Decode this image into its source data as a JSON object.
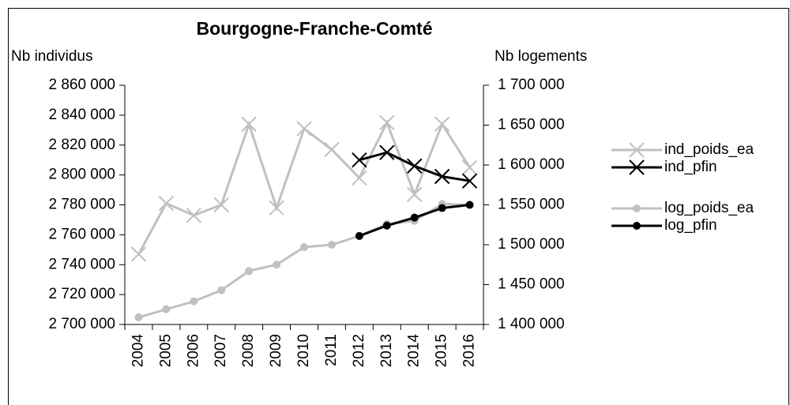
{
  "chart_data": {
    "type": "line",
    "title": "Bourgogne-Franche-Comté",
    "y_label": "Nb individus",
    "y2_label": "Nb logements",
    "categories": [
      "2004",
      "2005",
      "2006",
      "2007",
      "2008",
      "2009",
      "2010",
      "2011",
      "2012",
      "2013",
      "2014",
      "2015",
      "2016"
    ],
    "series": [
      {
        "name": "ind_poids_ea",
        "color": "#c0c0c0",
        "marker": "x",
        "axis": "y",
        "values": [
          2747000,
          2781000,
          2773000,
          2780000,
          2834000,
          2778000,
          2831000,
          2817000,
          2798000,
          2835000,
          2787000,
          2834000,
          2805000
        ]
      },
      {
        "name": "ind_pfin",
        "color": "#000000",
        "marker": "x",
        "axis": "y",
        "values": [
          null,
          null,
          null,
          null,
          null,
          null,
          null,
          null,
          2810000,
          2815000,
          2806000,
          2799000,
          2796000
        ]
      },
      {
        "name": "log_poids_ea",
        "color": "#c0c0c0",
        "marker": "circle",
        "axis": "y2",
        "values": [
          1409000,
          1419000,
          1429000,
          1443000,
          1467000,
          1475000,
          1497000,
          1500000,
          1511000,
          1526000,
          1530000,
          1551000,
          1550000
        ]
      },
      {
        "name": "log_pfin",
        "color": "#000000",
        "marker": "circle",
        "axis": "y2",
        "values": [
          null,
          null,
          null,
          null,
          null,
          null,
          null,
          null,
          1511000,
          1524000,
          1534000,
          1546000,
          1550000
        ]
      }
    ],
    "ylim": [
      2700000,
      2860000
    ],
    "yticks": [
      {
        "value": 2700000,
        "label": "2 700 000"
      },
      {
        "value": 2720000,
        "label": "2 720 000"
      },
      {
        "value": 2740000,
        "label": "2 740 000"
      },
      {
        "value": 2760000,
        "label": "2 760 000"
      },
      {
        "value": 2780000,
        "label": "2 780 000"
      },
      {
        "value": 2800000,
        "label": "2 800 000"
      },
      {
        "value": 2820000,
        "label": "2 820 000"
      },
      {
        "value": 2840000,
        "label": "2 840 000"
      },
      {
        "value": 2860000,
        "label": "2 860 000"
      }
    ],
    "y2lim": [
      1400000,
      1700000
    ],
    "y2ticks": [
      {
        "value": 1400000,
        "label": "1 400 000"
      },
      {
        "value": 1450000,
        "label": "1 450 000"
      },
      {
        "value": 1500000,
        "label": "1 500 000"
      },
      {
        "value": 1550000,
        "label": "1 550 000"
      },
      {
        "value": 1600000,
        "label": "1 600 000"
      },
      {
        "value": 1650000,
        "label": "1 650 000"
      },
      {
        "value": 1700000,
        "label": "1 700 000"
      }
    ],
    "grid": false,
    "legend": "right"
  }
}
